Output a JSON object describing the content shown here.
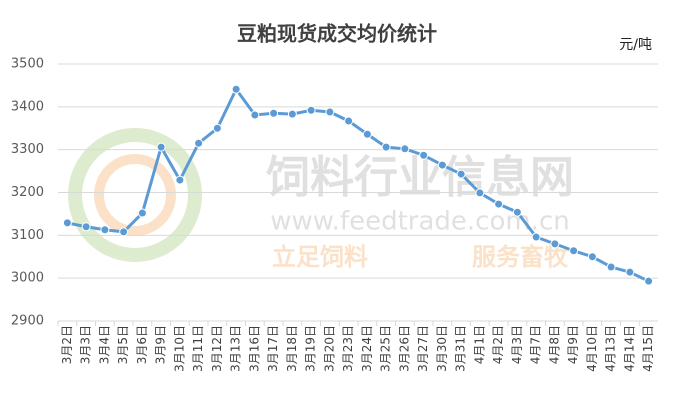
{
  "chart_data": {
    "type": "line",
    "title": "豆粕现货成交均价统计",
    "unit": "元/吨",
    "watermark": [
      "饲料行业信息网",
      "www.feedtrade.com.cn",
      "立足饲料",
      "服务畜牧"
    ],
    "categories": [
      "3月2日",
      "3月3日",
      "3月4日",
      "3月5日",
      "3月6日",
      "3月9日",
      "3月10日",
      "3月11日",
      "3月12日",
      "3月13日",
      "3月16日",
      "3月17日",
      "3月18日",
      "3月19日",
      "3月20日",
      "3月23日",
      "3月24日",
      "3月25日",
      "3月26日",
      "3月27日",
      "3月30日",
      "3月31日",
      "4月1日",
      "4月2日",
      "4月3日",
      "4月7日",
      "4月8日",
      "4月9日",
      "4月10日",
      "4月13日",
      "4月14日",
      "4月15日"
    ],
    "values": [
      3129,
      3120,
      3113,
      3108,
      3152,
      3306,
      3229,
      3315,
      3350,
      3441,
      3381,
      3385,
      3383,
      3392,
      3388,
      3367,
      3336,
      3306,
      3302,
      3287,
      3264,
      3243,
      3199,
      3173,
      3154,
      3096,
      3080,
      3064,
      3050,
      3026,
      3014,
      2993
    ],
    "color": "#5b9bd5",
    "ylim": [
      2900,
      3500
    ],
    "yticks": [
      2900,
      3000,
      3100,
      3200,
      3300,
      3400,
      3500
    ],
    "grid": true
  }
}
